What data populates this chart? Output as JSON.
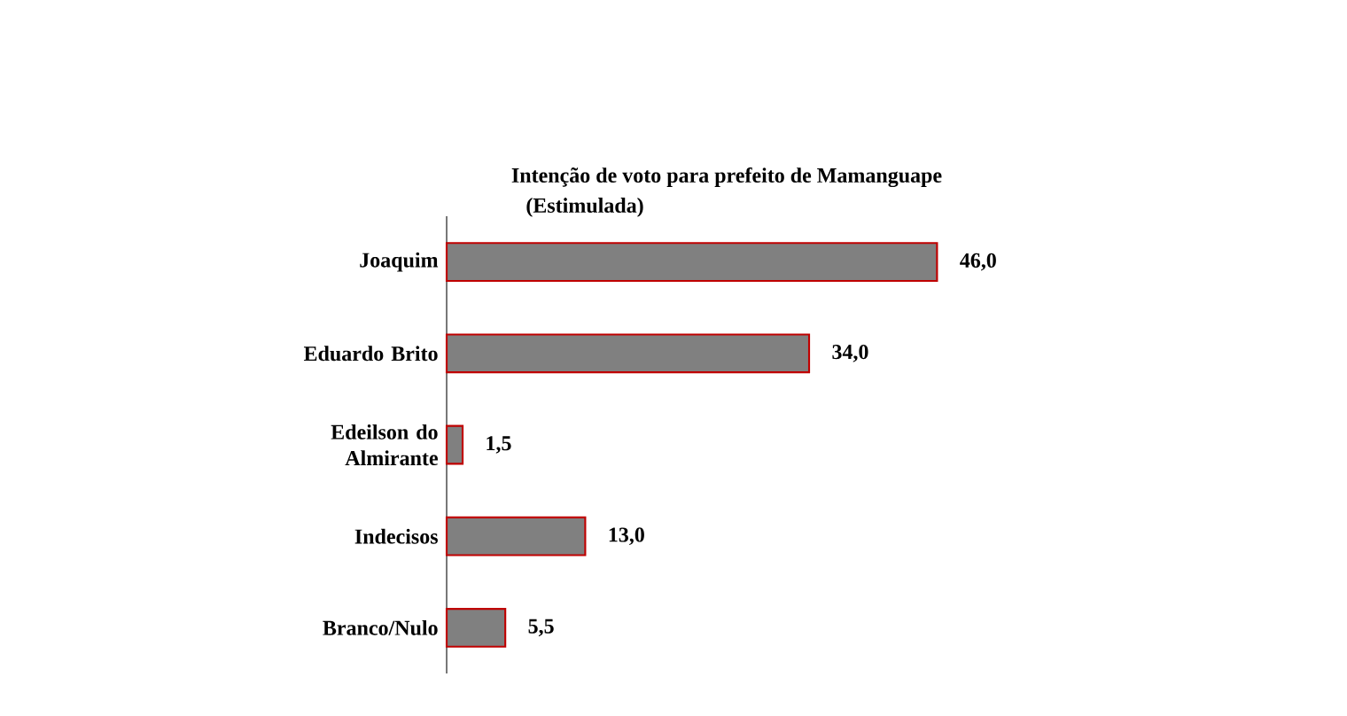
{
  "chart_data": {
    "type": "bar",
    "orientation": "horizontal",
    "title": "Intenção de voto para prefeito de Mamanguape",
    "subtitle": "(Estimulada)",
    "categories": [
      "Joaquim",
      "Eduardo Brito",
      "Edeilson do Almirante",
      "Indecisos",
      "Branco/Nulo"
    ],
    "values": [
      46.0,
      34.0,
      1.5,
      13.0,
      5.5
    ],
    "value_labels": [
      "46,0",
      "34,0",
      "1,5",
      "13,0",
      "5,5"
    ],
    "color": "#808080"
  }
}
